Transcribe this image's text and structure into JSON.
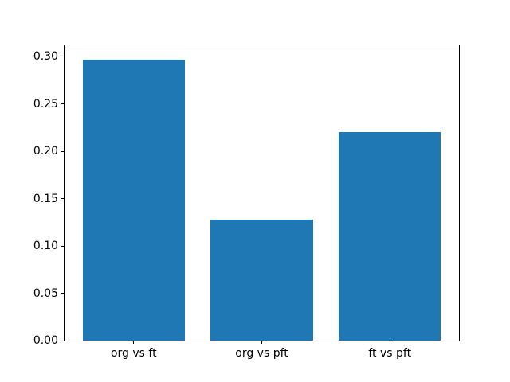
{
  "figure": {
    "background": "#ffffff",
    "spine_color": "#000000",
    "tick_color": "#000000",
    "text_color": "#000000"
  },
  "chart_data": {
    "type": "bar",
    "title": "",
    "xlabel": "",
    "ylabel": "",
    "categories": [
      "org vs ft",
      "org vs pft",
      "ft vs pft"
    ],
    "values": [
      0.297,
      0.128,
      0.22
    ],
    "bar_color": "#1f77b4",
    "bar_width": 0.8,
    "xlim": [
      -0.54,
      2.54
    ],
    "ylim": [
      0,
      0.312
    ],
    "yticks": [
      0.0,
      0.05,
      0.1,
      0.15,
      0.2,
      0.25,
      0.3
    ],
    "ytick_labels": [
      "0.00",
      "0.05",
      "0.10",
      "0.15",
      "0.20",
      "0.25",
      "0.30"
    ],
    "grid": false,
    "legend": null
  }
}
